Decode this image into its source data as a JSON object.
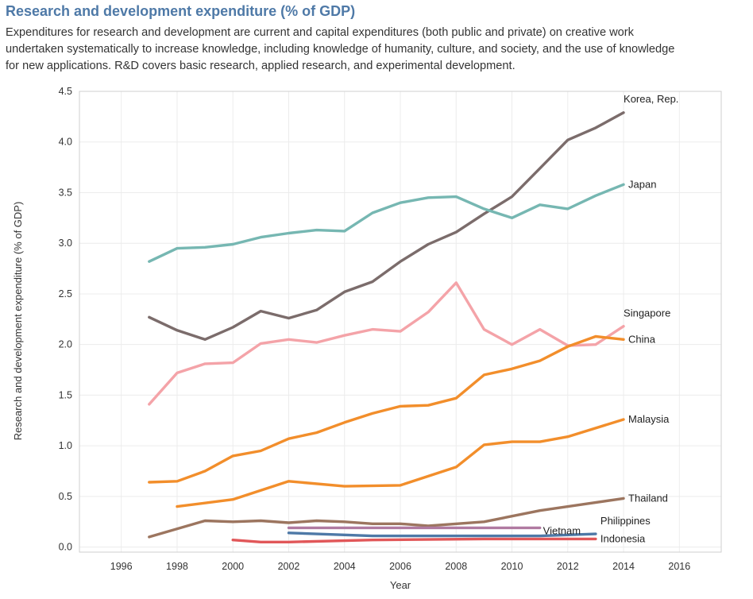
{
  "header": {
    "title": "Research and development expenditure (% of GDP)",
    "description_lines": [
      "Expenditures for research and development are current and capital expenditures (both public and private) on creative work",
      "undertaken systematically to increase knowledge, including knowledge of humanity, culture, and society, and the use of knowledge",
      "for new applications. R&D covers basic research, applied research, and experimental development."
    ]
  },
  "chart_data": {
    "type": "line",
    "title": "Research and development expenditure (% of GDP)",
    "xlabel": "Year",
    "ylabel": "Research and development expenditure (% of GDP)",
    "xlim": [
      1994.5,
      2017.5
    ],
    "ylim": [
      -0.05,
      4.5
    ],
    "x_ticks": [
      "1996",
      "1998",
      "2000",
      "2002",
      "2004",
      "2006",
      "2008",
      "2010",
      "2012",
      "2014",
      "2016"
    ],
    "y_ticks": [
      "0.0",
      "0.5",
      "1.0",
      "1.5",
      "2.0",
      "2.5",
      "3.0",
      "3.5",
      "4.0",
      "4.5"
    ],
    "grid": true,
    "series": [
      {
        "name": "Korea, Rep.",
        "color": "#7b6c6b",
        "x": [
          1997,
          1998,
          1999,
          2000,
          2001,
          2002,
          2003,
          2004,
          2005,
          2006,
          2007,
          2008,
          2009,
          2010,
          2011,
          2012,
          2013,
          2014
        ],
        "values": [
          2.27,
          2.14,
          2.05,
          2.17,
          2.33,
          2.26,
          2.34,
          2.52,
          2.62,
          2.82,
          2.99,
          3.11,
          3.29,
          3.46,
          3.74,
          4.02,
          4.14,
          4.29
        ]
      },
      {
        "name": "Japan",
        "color": "#76b7b2",
        "x": [
          1997,
          1998,
          1999,
          2000,
          2001,
          2002,
          2003,
          2004,
          2005,
          2006,
          2007,
          2008,
          2009,
          2010,
          2011,
          2012,
          2013,
          2014
        ],
        "values": [
          2.82,
          2.95,
          2.96,
          2.99,
          3.06,
          3.1,
          3.13,
          3.12,
          3.3,
          3.4,
          3.45,
          3.46,
          3.34,
          3.25,
          3.38,
          3.34,
          3.47,
          3.58
        ]
      },
      {
        "name": "Singapore",
        "color": "#f4a3a8",
        "x": [
          1997,
          1998,
          1999,
          2000,
          2001,
          2002,
          2003,
          2004,
          2005,
          2006,
          2007,
          2008,
          2009,
          2010,
          2011,
          2012,
          2013,
          2014
        ],
        "values": [
          1.41,
          1.72,
          1.81,
          1.82,
          2.01,
          2.05,
          2.02,
          2.09,
          2.15,
          2.13,
          2.32,
          2.61,
          2.15,
          2.0,
          2.15,
          1.99,
          2.0,
          2.18
        ]
      },
      {
        "name": "China",
        "color": "#f28e2b",
        "x": [
          1997,
          1998,
          1999,
          2000,
          2001,
          2002,
          2003,
          2004,
          2005,
          2006,
          2007,
          2008,
          2009,
          2010,
          2011,
          2012,
          2013,
          2014
        ],
        "values": [
          0.64,
          0.65,
          0.75,
          0.9,
          0.95,
          1.07,
          1.13,
          1.23,
          1.32,
          1.39,
          1.4,
          1.47,
          1.7,
          1.76,
          1.84,
          1.98,
          2.08,
          2.05
        ]
      },
      {
        "name": "Malaysia",
        "color": "#f28e2b",
        "x": [
          1998,
          2000,
          2002,
          2004,
          2006,
          2008,
          2009,
          2010,
          2011,
          2012,
          2014
        ],
        "values": [
          0.4,
          0.47,
          0.65,
          0.6,
          0.61,
          0.79,
          1.01,
          1.04,
          1.04,
          1.09,
          1.26
        ]
      },
      {
        "name": "Thailand",
        "color": "#9c755f",
        "x": [
          1997,
          1999,
          2000,
          2001,
          2002,
          2003,
          2004,
          2005,
          2006,
          2007,
          2009,
          2011,
          2014
        ],
        "values": [
          0.1,
          0.26,
          0.25,
          0.26,
          0.24,
          0.26,
          0.25,
          0.23,
          0.23,
          0.21,
          0.25,
          0.36,
          0.48
        ]
      },
      {
        "name": "Vietnam",
        "color": "#b07aa1",
        "x": [
          2002,
          2011
        ],
        "values": [
          0.19,
          0.19
        ]
      },
      {
        "name": "Philippines",
        "color": "#4e79a7",
        "x": [
          2002,
          2005,
          2007,
          2009,
          2011,
          2013
        ],
        "values": [
          0.14,
          0.11,
          0.11,
          0.11,
          0.11,
          0.13
        ]
      },
      {
        "name": "Indonesia",
        "color": "#e15759",
        "x": [
          2000,
          2001,
          2002,
          2005,
          2009,
          2013
        ],
        "values": [
          0.07,
          0.05,
          0.05,
          0.07,
          0.08,
          0.08
        ]
      }
    ]
  }
}
